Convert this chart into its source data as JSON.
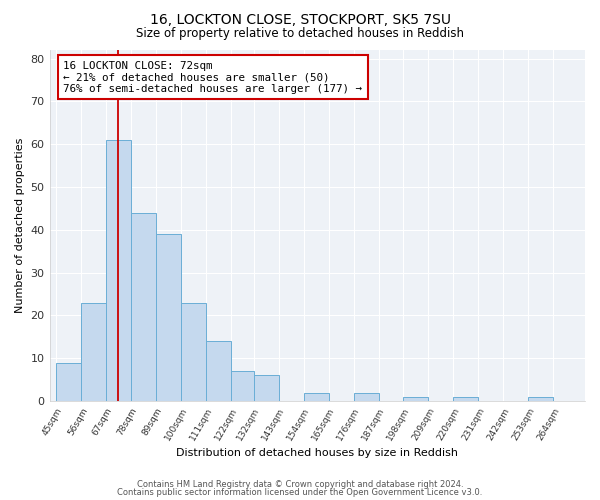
{
  "title1": "16, LOCKTON CLOSE, STOCKPORT, SK5 7SU",
  "title2": "Size of property relative to detached houses in Reddish",
  "xlabel": "Distribution of detached houses by size in Reddish",
  "ylabel": "Number of detached properties",
  "bar_edges": [
    45,
    56,
    67,
    78,
    89,
    100,
    111,
    122,
    132,
    143,
    154,
    165,
    176,
    187,
    198,
    209,
    220,
    231,
    242,
    253,
    264,
    275
  ],
  "bar_heights": [
    9,
    23,
    61,
    44,
    39,
    23,
    14,
    7,
    6,
    0,
    2,
    0,
    2,
    0,
    1,
    0,
    1,
    0,
    0,
    1,
    0
  ],
  "tick_labels": [
    "45sqm",
    "56sqm",
    "67sqm",
    "78sqm",
    "89sqm",
    "100sqm",
    "111sqm",
    "122sqm",
    "132sqm",
    "143sqm",
    "154sqm",
    "165sqm",
    "176sqm",
    "187sqm",
    "198sqm",
    "209sqm",
    "220sqm",
    "231sqm",
    "242sqm",
    "253sqm",
    "264sqm"
  ],
  "bar_color": "#c5d9ee",
  "bar_edge_color": "#6aaed6",
  "property_line_x": 72,
  "property_line_color": "#cc0000",
  "ylim": [
    0,
    82
  ],
  "yticks": [
    0,
    10,
    20,
    30,
    40,
    50,
    60,
    70,
    80
  ],
  "annotation_text": "16 LOCKTON CLOSE: 72sqm\n← 21% of detached houses are smaller (50)\n76% of semi-detached houses are larger (177) →",
  "annotation_box_color": "white",
  "annotation_box_edgecolor": "#cc0000",
  "footer1": "Contains HM Land Registry data © Crown copyright and database right 2024.",
  "footer2": "Contains public sector information licensed under the Open Government Licence v3.0.",
  "background_color": "#eef2f7",
  "grid_color": "#ffffff",
  "xlim_left": 42,
  "xlim_right": 278
}
